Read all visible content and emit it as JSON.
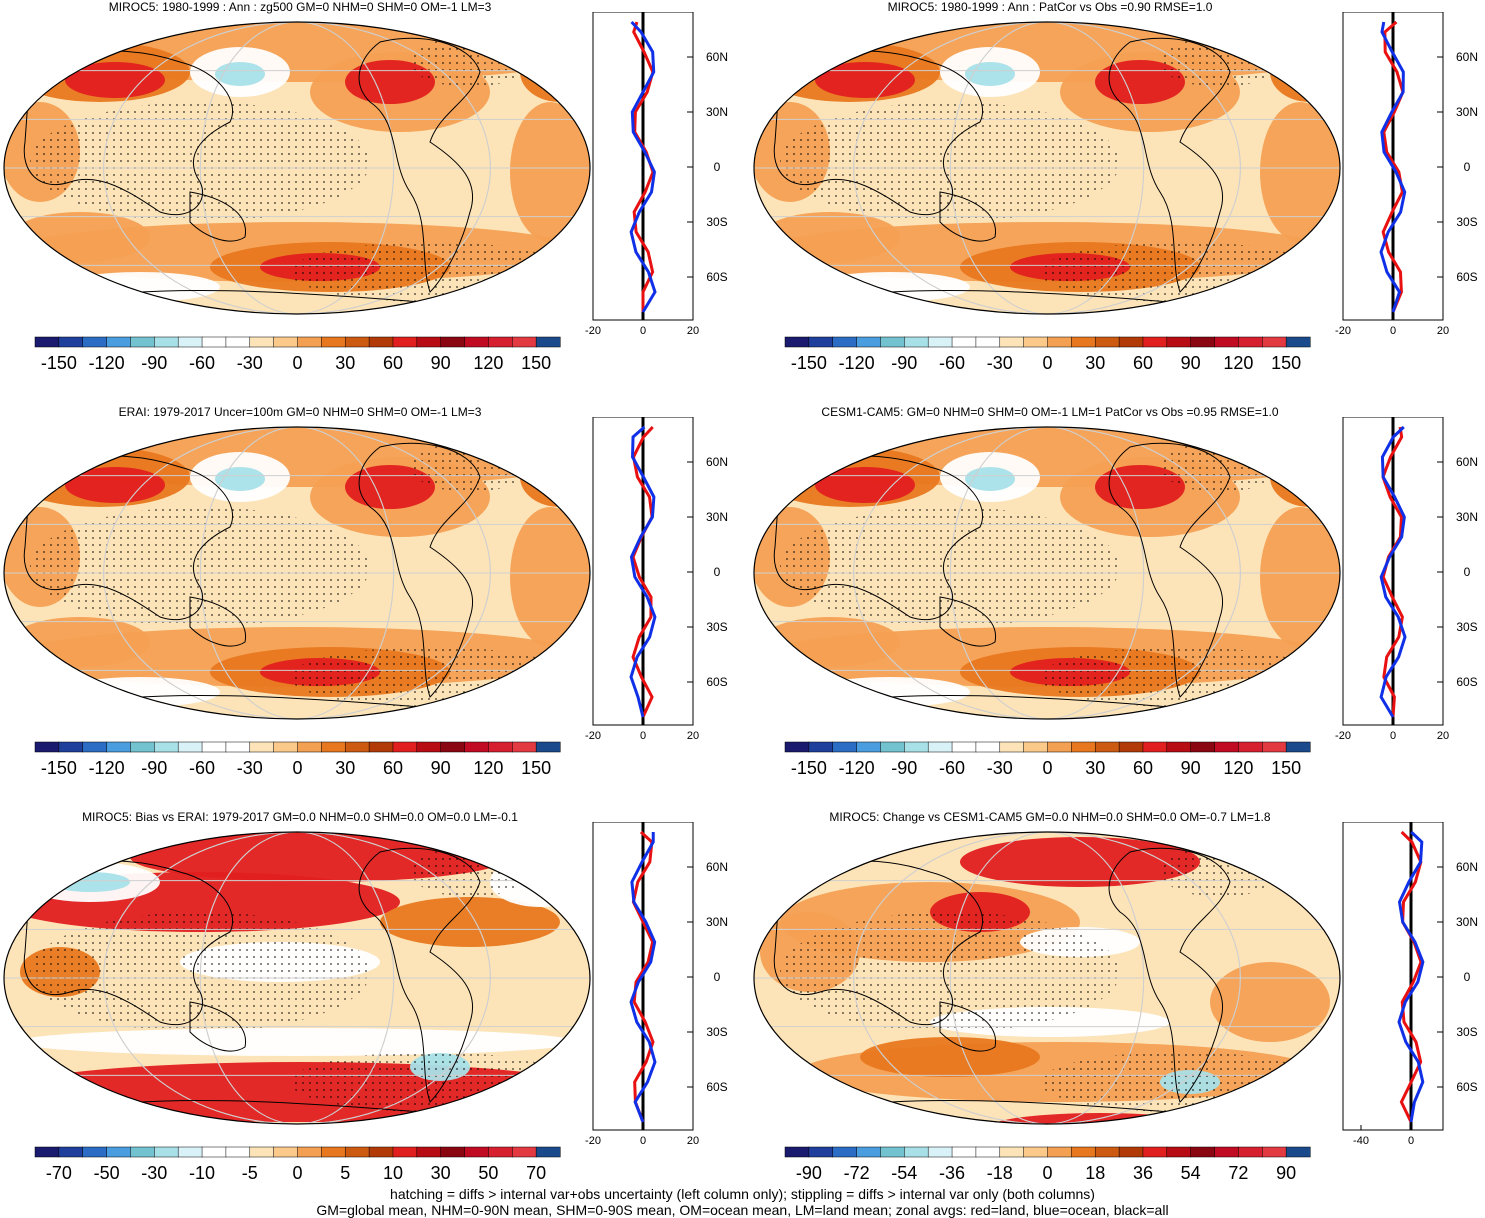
{
  "panels": [
    {
      "title": "MIROC5: 1980-1999 : Ann : zg500 GM=0 NHM=0 SHM=0 OM=-1 LM=3",
      "cb_ticks": [
        "-150",
        "-120",
        "-90",
        "-60",
        "-30",
        "0",
        "30",
        "60",
        "90",
        "120",
        "150"
      ],
      "prof_xticks": [
        "-20",
        "0",
        "20"
      ],
      "scheme": "full"
    },
    {
      "title": "MIROC5: 1980-1999 : Ann : PatCor vs Obs =0.90 RMSE=1.0",
      "cb_ticks": [
        "-150",
        "-120",
        "-90",
        "-60",
        "-30",
        "0",
        "30",
        "60",
        "90",
        "120",
        "150"
      ],
      "prof_xticks": [
        "-20",
        "0",
        "20"
      ],
      "scheme": "full"
    },
    {
      "title": "ERAI: 1979-2017 Uncer=100m GM=0 NHM=0 SHM=0 OM=-1 LM=3",
      "cb_ticks": [
        "-150",
        "-120",
        "-90",
        "-60",
        "-30",
        "0",
        "30",
        "60",
        "90",
        "120",
        "150"
      ],
      "prof_xticks": [
        "-20",
        "0",
        "20"
      ],
      "scheme": "full"
    },
    {
      "title": "CESM1-CAM5: GM=0 NHM=0 SHM=0 OM=-1 LM=1 PatCor vs Obs =0.95 RMSE=1.0",
      "cb_ticks": [
        "-150",
        "-120",
        "-90",
        "-60",
        "-30",
        "0",
        "30",
        "60",
        "90",
        "120",
        "150"
      ],
      "prof_xticks": [
        "-20",
        "0",
        "20"
      ],
      "scheme": "full"
    },
    {
      "title": "MIROC5: Bias vs ERAI: 1979-2017 GM=0.0 NHM=0.0 SHM=0.0 OM=0.0 LM=-0.1",
      "cb_ticks": [
        "-70",
        "-50",
        "-30",
        "-10",
        "-5",
        "0",
        "5",
        "10",
        "30",
        "50",
        "70"
      ],
      "prof_xticks": [
        "-20",
        "0",
        "20"
      ],
      "scheme": "bias"
    },
    {
      "title": "MIROC5: Change vs CESM1-CAM5 GM=0.0 NHM=0.0 SHM=0.0 OM=-0.7 LM=1.8",
      "cb_ticks": [
        "-90",
        "-72",
        "-54",
        "-36",
        "-18",
        "0",
        "18",
        "36",
        "54",
        "72",
        "90"
      ],
      "prof_xticks": [
        "-40",
        "0"
      ],
      "scheme": "change"
    }
  ],
  "profile": {
    "unit": "m",
    "lat_labels": [
      "60N",
      "30N",
      "0",
      "30S",
      "60S"
    ]
  },
  "colorbar_colors": [
    "#1a1a6e",
    "#1f3f9c",
    "#2b6cc4",
    "#4a9ee0",
    "#72c3cf",
    "#a8e0e8",
    "#d8f2f8",
    "#ffffff",
    "#ffffff",
    "#fde4b8",
    "#fbc98a",
    "#f4a053",
    "#e8781f",
    "#cc5a10",
    "#b23a06",
    "#e21f1f",
    "#b80c14",
    "#8a0610",
    "#c00b22",
    "#d6202f",
    "#e33a42",
    "#1a4a8c"
  ],
  "footer": {
    "line1": "hatching = diffs > internal var+obs uncertainty (left column only); stippling = diffs > internal var only (both columns)",
    "line2": "GM=global mean, NHM=0-90N mean, SHM=0-90S mean, OM=ocean mean, LM=land mean; zonal avgs: red=land, blue=ocean, black=all"
  }
}
